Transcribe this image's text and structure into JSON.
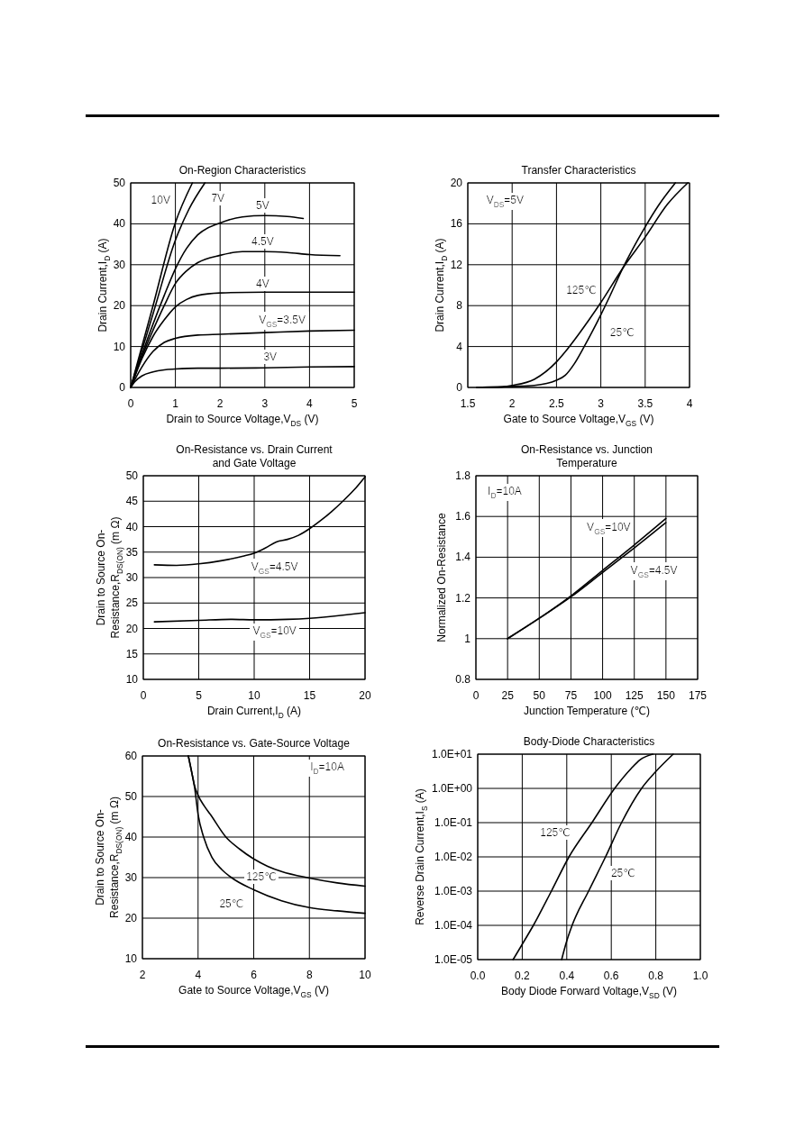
{
  "chart_data": [
    {
      "type": "line",
      "title": "On-Region Characteristics",
      "xlabel": "Drain to Source Voltage,V$_{DS}$ (V)",
      "ylabel": "Drain Current,I$_{D}$ (A)",
      "xlim": [
        0,
        5
      ],
      "ylim": [
        0,
        50
      ],
      "xticks": [
        0,
        1,
        2,
        3,
        4,
        5
      ],
      "yticks": [
        0,
        10,
        20,
        30,
        40,
        50
      ],
      "grid": true,
      "series": [
        {
          "name": "10V",
          "color": "#000000",
          "x": [
            0,
            0.5,
            1,
            1.38
          ],
          "values": [
            0,
            20,
            40.3,
            50
          ]
        },
        {
          "name": "7V",
          "color": "#000000",
          "x": [
            0,
            0.5,
            1,
            1.3,
            1.66
          ],
          "values": [
            0,
            18,
            36,
            43.5,
            50
          ]
        },
        {
          "name": "5V",
          "color": "#000000",
          "x": [
            0,
            0.25,
            0.5,
            0.75,
            1,
            1.25,
            1.5,
            2,
            2.5,
            3,
            3.5,
            3.86
          ],
          "values": [
            0,
            8,
            15.5,
            22.5,
            29,
            34,
            37.3,
            40.2,
            41.7,
            42,
            41.8,
            41.3
          ]
        },
        {
          "name": "4.5V",
          "color": "#000000",
          "x": [
            0,
            0.25,
            0.5,
            0.75,
            1,
            1.25,
            1.5,
            2,
            2.5,
            3,
            3.5,
            4,
            4.68
          ],
          "values": [
            0,
            7.5,
            14,
            20,
            25.4,
            28.5,
            30.5,
            32.3,
            33.2,
            33.2,
            33,
            32.5,
            32.2
          ]
        },
        {
          "name": "4V",
          "color": "#000000",
          "x": [
            0,
            0.25,
            0.5,
            0.75,
            1,
            1.25,
            1.5,
            2,
            3,
            4,
            5
          ],
          "values": [
            0,
            7,
            12.5,
            16.5,
            19.7,
            21.5,
            22.5,
            23.1,
            23.3,
            23.3,
            23.3
          ]
        },
        {
          "name": "V$_{GS}$=3.5V",
          "color": "#000000",
          "x": [
            0,
            0.25,
            0.5,
            0.75,
            1,
            1.5,
            2,
            3,
            4,
            5
          ],
          "values": [
            0,
            5,
            8.8,
            11,
            12,
            12.8,
            13,
            13.4,
            13.8,
            14
          ]
        },
        {
          "name": "3V",
          "color": "#000000",
          "x": [
            0,
            0.1,
            0.25,
            0.5,
            0.75,
            1,
            1.5,
            2,
            3,
            4,
            5
          ],
          "values": [
            0,
            1.5,
            2.8,
            3.8,
            4.3,
            4.5,
            4.7,
            4.7,
            4.8,
            5,
            5.1
          ]
        }
      ]
    },
    {
      "type": "line",
      "title": "Transfer Characteristics",
      "xlabel": "Gate to Source Voltage,V$_{GS}$ (V)",
      "ylabel": "Drain Current,I$_{D}$ (A)",
      "xlim": [
        1.5,
        4
      ],
      "ylim": [
        0,
        20
      ],
      "xticks": [
        1.5,
        2,
        2.5,
        3,
        3.5,
        4
      ],
      "yticks": [
        0,
        4,
        8,
        12,
        16,
        20
      ],
      "grid": true,
      "series": [
        {
          "name": "25℃",
          "color": "#000000",
          "x": [
            1.6,
            2,
            2.25,
            2.5,
            2.6,
            2.7,
            2.8,
            2.9,
            3,
            3.1,
            3.25,
            3.5,
            3.65,
            3.84
          ],
          "values": [
            0,
            0.1,
            0.2,
            0.7,
            1.2,
            2.3,
            3.8,
            5.4,
            7.1,
            8.9,
            11.7,
            15.7,
            17.8,
            20
          ]
        },
        {
          "name": "125℃",
          "color": "#000000",
          "x": [
            1.6,
            1.8,
            2,
            2.25,
            2.5,
            2.6,
            2.75,
            3,
            3.25,
            3.5,
            3.75,
            3.98
          ],
          "values": [
            0,
            0,
            0.2,
            0.8,
            2.5,
            3.5,
            5.2,
            8.3,
            11.7,
            14.7,
            17.9,
            20
          ]
        }
      ],
      "annotations": [
        "V$_{DS}$=5V"
      ]
    },
    {
      "type": "line",
      "title": "On-Resistance vs. Drain Current\nand Gate Voltage",
      "xlabel": "Drain Current,I$_{D}$ (A)",
      "ylabel": "Drain to Source On-\nResistance,R$_{DS(ON)}$ (m Ω)",
      "xlim": [
        0,
        20
      ],
      "ylim": [
        10,
        50
      ],
      "xticks": [
        0,
        5,
        10,
        15,
        20
      ],
      "yticks": [
        10,
        15,
        20,
        25,
        30,
        35,
        40,
        45,
        50
      ],
      "grid": true,
      "series": [
        {
          "name": "V$_{GS}$=4.5V",
          "color": "#000000",
          "x": [
            1,
            3,
            5,
            7,
            9,
            10,
            11,
            12,
            13,
            14,
            15,
            16,
            17,
            18,
            19,
            20
          ],
          "values": [
            32.5,
            32.4,
            32.7,
            33.3,
            34.2,
            34.8,
            35.8,
            37,
            37.5,
            38.3,
            39.6,
            41.2,
            43,
            45,
            47.2,
            49.8
          ]
        },
        {
          "name": "V$_{GS}$=10V",
          "color": "#000000",
          "x": [
            1,
            5,
            8,
            10,
            13,
            15,
            18,
            20
          ],
          "values": [
            21.3,
            21.6,
            21.8,
            21.7,
            21.8,
            22,
            22.6,
            23.1
          ]
        }
      ]
    },
    {
      "type": "line",
      "title": "On-Resistance vs. Junction\nTemperature",
      "xlabel": "Junction Temperature (℃)",
      "ylabel": "Normalized On-Resistance",
      "xlim": [
        0,
        175
      ],
      "ylim": [
        0.8,
        1.8
      ],
      "xticks": [
        0,
        25,
        50,
        75,
        100,
        125,
        150,
        175
      ],
      "yticks": [
        0.8,
        1,
        1.2,
        1.4,
        1.6,
        1.8
      ],
      "grid": true,
      "series": [
        {
          "name": "V$_{GS}$=10V",
          "color": "#000000",
          "x": [
            25,
            50,
            75,
            100,
            125,
            150
          ],
          "values": [
            1,
            1.1,
            1.21,
            1.335,
            1.46,
            1.59
          ]
        },
        {
          "name": "V$_{GS}$=4.5V",
          "color": "#000000",
          "x": [
            25,
            50,
            75,
            100,
            125,
            150
          ],
          "values": [
            1,
            1.1,
            1.205,
            1.325,
            1.445,
            1.57
          ]
        }
      ],
      "annotations": [
        "I$_{D}$=10A"
      ]
    },
    {
      "type": "line",
      "title": "On-Resistance vs. Gate-Source Voltage",
      "xlabel": "Gate to Source Voltage,V$_{GS}$ (V)",
      "ylabel": "Drain to Source On-\nResistance,R$_{DS(ON)}$ (m Ω)",
      "xlim": [
        2,
        10
      ],
      "ylim": [
        10,
        60
      ],
      "xticks": [
        2,
        4,
        6,
        8,
        10
      ],
      "yticks": [
        10,
        20,
        30,
        40,
        50,
        60
      ],
      "grid": true,
      "series": [
        {
          "name": "125℃",
          "color": "#000000",
          "x": [
            3.65,
            3.78,
            3.88,
            4,
            4.22,
            4.44,
            5,
            5.5,
            6,
            6.5,
            7,
            8,
            9,
            10
          ],
          "values": [
            60,
            55.7,
            52.5,
            50.3,
            47.7,
            45.6,
            40,
            37,
            34.6,
            32.8,
            31.5,
            29.9,
            28.7,
            27.9
          ]
        },
        {
          "name": "25℃",
          "color": "#000000",
          "x": [
            3.65,
            3.78,
            3.88,
            4,
            4.2,
            4.5,
            4.85,
            5.2,
            6,
            7,
            8,
            9,
            10
          ],
          "values": [
            60,
            55.7,
            52,
            45.6,
            40,
            35,
            32,
            30,
            27,
            24.3,
            22.6,
            21.8,
            21.2
          ]
        }
      ],
      "annotations": [
        "I$_{D}$=10A"
      ]
    },
    {
      "type": "line",
      "title": "Body-Diode Characteristics",
      "xlabel": "Body Diode Forward Voltage,V$_{SD}$ (V)",
      "ylabel": "Reverse Drain Current,I$_{S}$ (A)",
      "xlim": [
        0,
        1
      ],
      "ylim": [
        1e-05,
        10
      ],
      "log": "y",
      "xticks": [
        {
          "value": 0,
          "label": "0.0"
        },
        0.2,
        0.4,
        0.6,
        0.8,
        {
          "value": 1,
          "label": "1.0"
        }
      ],
      "yticks": [
        {
          "value": 1e-05,
          "label": "1.0E-05"
        },
        {
          "value": 0.0001,
          "label": "1.0E-04"
        },
        {
          "value": 0.001,
          "label": "1.0E-03"
        },
        {
          "value": 0.01,
          "label": "1.0E-02"
        },
        {
          "value": 0.1,
          "label": "1.0E-01"
        },
        {
          "value": 1,
          "label": "1.0E+00"
        },
        {
          "value": 10,
          "label": "1.0E+01"
        }
      ],
      "grid": true,
      "series": [
        {
          "name": "125℃",
          "color": "#000000",
          "x": [
            0.159,
            0.2,
            0.25,
            0.331,
            0.41,
            0.513,
            0.615,
            0.689,
            0.73,
            0.786
          ],
          "values": [
            1e-05,
            2.8e-05,
            0.0001,
            0.001,
            0.01,
            0.1,
            1,
            3.8,
            6.9,
            10
          ]
        },
        {
          "name": "25℃",
          "color": "#000000",
          "x": [
            0.377,
            0.4,
            0.424,
            0.498,
            0.574,
            0.646,
            0.736,
            0.8,
            0.878
          ],
          "values": [
            1e-05,
            3.5e-05,
            0.0001,
            0.001,
            0.01,
            0.1,
            1,
            3.1,
            10
          ]
        }
      ]
    }
  ]
}
